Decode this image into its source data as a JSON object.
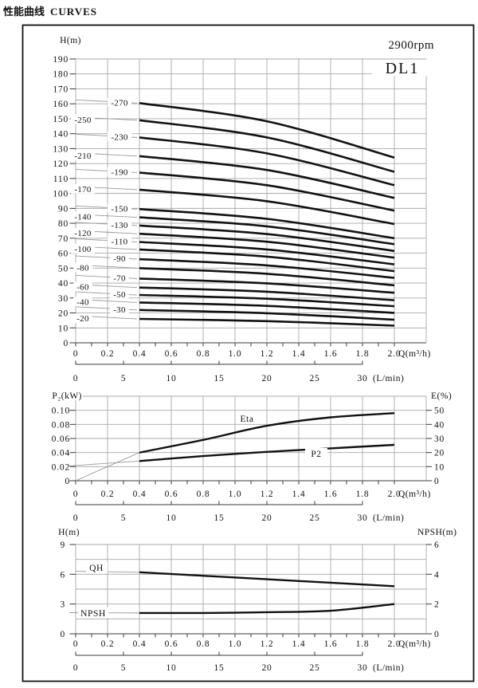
{
  "page": {
    "title_zh": "性能曲线",
    "title_en": "CURVES"
  },
  "header": {
    "speed": "2900rpm",
    "model": "DL1"
  },
  "chart_data": [
    {
      "id": "head-capacity",
      "type": "line",
      "title": "DL1",
      "annotation": "2900rpm",
      "ylabel": "H(m)",
      "xlabel": "Q(m³/h)",
      "xlabel2": "(L/min)",
      "ylim": [
        0,
        190
      ],
      "ytick_step": 10,
      "xlim": [
        0,
        2.2
      ],
      "grid": true,
      "xticks": {
        "values": [
          0,
          0.2,
          0.4,
          0.6,
          0.8,
          1.0,
          1.2,
          1.4,
          1.6,
          1.8,
          2.0
        ],
        "labels": [
          "0",
          "0.2",
          "0.4",
          "0.6",
          "0.8",
          "1.0",
          "1.2",
          "1.4",
          "1.6",
          "1.8",
          "2.0"
        ]
      },
      "xticks2": {
        "values": [
          0,
          5,
          10,
          15,
          20,
          25,
          30
        ],
        "labels": [
          "0",
          "5",
          "10",
          "15",
          "20",
          "25",
          "30"
        ],
        "q_per_unit": 0.06
      },
      "curves": [
        {
          "label": "-270",
          "label_side": "right",
          "q": [
            0.4,
            1.2,
            2.0
          ],
          "h": [
            160.5,
            148.3,
            124.0
          ]
        },
        {
          "label": "-250",
          "label_side": "left",
          "q": [
            0.4,
            1.2,
            2.0
          ],
          "h": [
            149.0,
            137.5,
            114.5
          ]
        },
        {
          "label": "-230",
          "label_side": "right",
          "q": [
            0.4,
            1.2,
            2.0
          ],
          "h": [
            137.5,
            126.8,
            105.5
          ]
        },
        {
          "label": "-210",
          "label_side": "left",
          "q": [
            0.4,
            1.2,
            2.0
          ],
          "h": [
            125.0,
            115.7,
            97.0
          ]
        },
        {
          "label": "-190",
          "label_side": "right",
          "q": [
            0.4,
            1.2,
            2.0
          ],
          "h": [
            114.0,
            105.5,
            88.5
          ]
        },
        {
          "label": "-170",
          "label_side": "left",
          "q": [
            0.4,
            1.2,
            2.0
          ],
          "h": [
            102.5,
            94.8,
            79.5
          ]
        },
        {
          "label": "-150",
          "label_side": "right",
          "q": [
            0.4,
            1.2,
            2.0
          ],
          "h": [
            89.5,
            83.0,
            70.0
          ]
        },
        {
          "label": "-140",
          "label_side": "left",
          "q": [
            0.4,
            1.2,
            2.0
          ],
          "h": [
            84.0,
            78.0,
            66.0
          ]
        },
        {
          "label": "-130",
          "label_side": "right",
          "q": [
            0.4,
            1.2,
            2.0
          ],
          "h": [
            78.5,
            72.8,
            61.5
          ]
        },
        {
          "label": "-120",
          "label_side": "left",
          "q": [
            0.4,
            1.2,
            2.0
          ],
          "h": [
            73.0,
            67.7,
            57.0
          ]
        },
        {
          "label": "-110",
          "label_side": "right",
          "q": [
            0.4,
            1.2,
            2.0
          ],
          "h": [
            67.5,
            62.5,
            52.5
          ]
        },
        {
          "label": "-100",
          "label_side": "left",
          "q": [
            0.4,
            1.2,
            2.0
          ],
          "h": [
            62.5,
            57.7,
            48.0
          ]
        },
        {
          "label": "-90",
          "label_side": "right",
          "q": [
            0.4,
            1.2,
            2.0
          ],
          "h": [
            56.0,
            51.8,
            43.5
          ]
        },
        {
          "label": "-80",
          "label_side": "left",
          "q": [
            0.4,
            1.2,
            2.0
          ],
          "h": [
            50.0,
            46.2,
            38.5
          ]
        },
        {
          "label": "-70",
          "label_side": "right",
          "q": [
            0.4,
            1.2,
            2.0
          ],
          "h": [
            43.0,
            39.8,
            33.5
          ]
        },
        {
          "label": "-60",
          "label_side": "left",
          "q": [
            0.4,
            1.2,
            2.0
          ],
          "h": [
            37.0,
            34.2,
            28.5
          ]
        },
        {
          "label": "-50",
          "label_side": "right",
          "q": [
            0.4,
            1.2,
            2.0
          ],
          "h": [
            32.0,
            29.5,
            24.5
          ]
        },
        {
          "label": "-40",
          "label_side": "left",
          "q": [
            0.4,
            1.2,
            2.0
          ],
          "h": [
            27.0,
            24.7,
            20.0
          ]
        },
        {
          "label": "-30",
          "label_side": "right",
          "q": [
            0.4,
            1.2,
            2.0
          ],
          "h": [
            22.0,
            19.8,
            15.5
          ]
        },
        {
          "label": "-20",
          "label_side": "left",
          "q": [
            0.4,
            1.2,
            2.0
          ],
          "h": [
            16.0,
            14.5,
            11.5
          ]
        }
      ]
    },
    {
      "id": "power-efficiency",
      "type": "line",
      "ylabel_left": "P₂(kW)",
      "ylabel_right": "E(%)",
      "xlabel": "Q(m³/h)",
      "xlabel2": "(L/min)",
      "ylim_left": [
        0,
        0.12
      ],
      "ylim_right": [
        0,
        60
      ],
      "yticks_left": {
        "values": [
          0.1,
          0.08,
          0.06,
          0.04,
          0.02,
          0
        ],
        "labels": [
          "0.10",
          "0.08",
          "0.06",
          "0.04",
          "0.02",
          "0"
        ]
      },
      "yticks_right": {
        "values": [
          50,
          40,
          30,
          20,
          10,
          0
        ],
        "labels": [
          "50",
          "40",
          "30",
          "20",
          "10",
          "0"
        ]
      },
      "xticks": {
        "values": [
          0,
          0.2,
          0.4,
          0.6,
          0.8,
          1.0,
          1.2,
          1.4,
          1.6,
          1.8,
          2.0
        ],
        "labels": [
          "0",
          "0.2",
          "0.4",
          "0.6",
          "0.8",
          "1.0",
          "1.2",
          "1.4",
          "1.6",
          "1.8",
          "2.0"
        ]
      },
      "xticks2": {
        "values": [
          0,
          5,
          10,
          15,
          20,
          25,
          30
        ],
        "labels": [
          "0",
          "5",
          "10",
          "15",
          "20",
          "25",
          "30"
        ],
        "q_per_unit": 0.06
      },
      "series": [
        {
          "name": "Eta",
          "axis": "right",
          "q": [
            0.4,
            0.8,
            1.2,
            1.6,
            2.0
          ],
          "v": [
            20,
            29,
            39,
            45,
            48
          ],
          "lead": {
            "from_q": 0,
            "from_v": 0
          }
        },
        {
          "name": "P2",
          "axis": "left",
          "q": [
            0.4,
            0.8,
            1.2,
            1.6,
            2.0
          ],
          "v": [
            0.028,
            0.035,
            0.041,
            0.046,
            0.051
          ],
          "lead": {
            "from_q": -0.04,
            "from_v": 0.021
          }
        }
      ]
    },
    {
      "id": "qh-npsh",
      "type": "line",
      "ylabel_left": "H(m)",
      "ylabel_right": "NPSH(m)",
      "xlabel": "Q(m³/h)",
      "xlabel2": "(L/min)",
      "ylim_left": [
        0,
        9
      ],
      "ylim_right": [
        0,
        6
      ],
      "yticks_left": {
        "values": [
          9,
          6,
          3,
          0
        ],
        "labels": [
          "9",
          "6",
          "3",
          "0"
        ]
      },
      "yticks_right": {
        "values": [
          6,
          4,
          2,
          0
        ],
        "labels": [
          "6",
          "4",
          "2",
          "0"
        ]
      },
      "xticks": {
        "values": [
          0,
          0.2,
          0.4,
          0.6,
          0.8,
          1.0,
          1.2,
          1.4,
          1.6,
          1.8,
          2.0
        ],
        "labels": [
          "0",
          "0.2",
          "0.4",
          "0.6",
          "0.8",
          "1.0",
          "1.2",
          "1.4",
          "1.6",
          "1.8",
          "2.0"
        ]
      },
      "xticks2": {
        "values": [
          0,
          5,
          10,
          15,
          20,
          25,
          30
        ],
        "labels": [
          "0",
          "5",
          "10",
          "15",
          "20",
          "25",
          "30"
        ],
        "q_per_unit": 0.06
      },
      "series": [
        {
          "name": "QH",
          "axis": "left",
          "q": [
            0.4,
            1.2,
            2.0
          ],
          "v": [
            6.2,
            5.5,
            4.8
          ],
          "lead": {
            "from_q": 0,
            "from_v": 6.3
          }
        },
        {
          "name": "NPSH",
          "axis": "right",
          "q": [
            0.4,
            0.8,
            1.2,
            1.6,
            2.0
          ],
          "v": [
            1.4,
            1.4,
            1.45,
            1.55,
            2.0
          ],
          "lead": {
            "from_q": -0.04,
            "from_v": 1.42
          }
        }
      ]
    }
  ]
}
